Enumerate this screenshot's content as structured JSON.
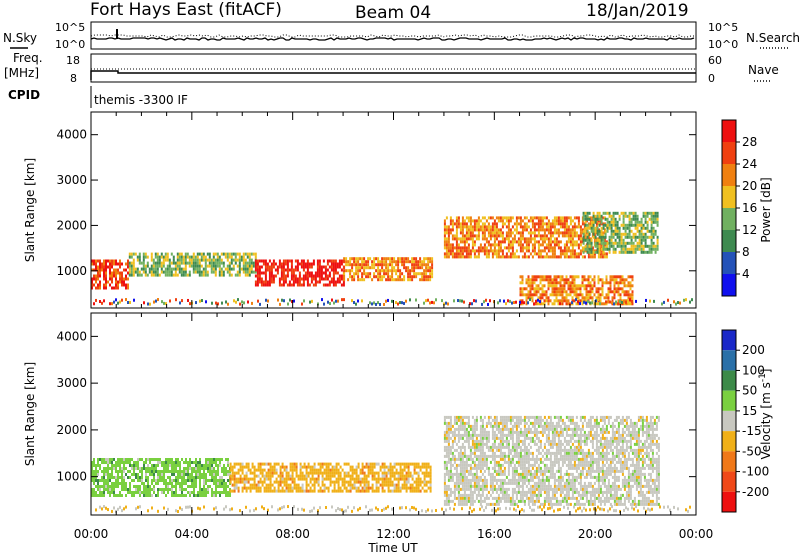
{
  "header": {
    "station": "Fort Hays East (fitACF)",
    "beam": "Beam 04",
    "date": "18/Jan/2019"
  },
  "panels": {
    "nsky_label": "N.Sky",
    "nsky_ticks": [
      "10^5",
      "10^0"
    ],
    "nsearch_label": "N.Search",
    "nsearch_ticks": [
      "10^5",
      "10^0"
    ],
    "freq_label": "Freq.",
    "freq_unit": "[MHz]",
    "freq_ticks": [
      "18",
      "8"
    ],
    "nave_label": "Nave",
    "nave_ticks": [
      "60",
      "0"
    ],
    "cpid_label": "CPID",
    "cpid_value": "themis -3300 IF"
  },
  "chart_data": [
    {
      "type": "heatmap",
      "name": "power",
      "xlabel": "",
      "ylabel": "Slant Range [km]",
      "x_ticks": [
        "00:00",
        "04:00",
        "08:00",
        "12:00",
        "16:00",
        "20:00",
        "00:00"
      ],
      "y_ticks": [
        1000,
        2000,
        3000,
        4000
      ],
      "xlim_hours": [
        0,
        24
      ],
      "ylim_km": [
        180,
        4500
      ],
      "colorbar": {
        "label": "Power [dB]",
        "ticks": [
          4,
          8,
          12,
          16,
          20,
          24,
          28
        ],
        "range": [
          0,
          30
        ],
        "colors": [
          "#1010ee",
          "#2452b8",
          "#3e8a50",
          "#70b060",
          "#f0c020",
          "#f08010",
          "#f04010",
          "#ee1010"
        ]
      },
      "echo_regions": [
        {
          "t_start": 0.0,
          "t_end": 1.5,
          "range_km": [
            650,
            1250
          ],
          "power_db": 26
        },
        {
          "t_start": 1.5,
          "t_end": 6.5,
          "range_km": [
            900,
            1400
          ],
          "power_db": 12
        },
        {
          "t_start": 6.5,
          "t_end": 10.0,
          "range_km": [
            700,
            1250
          ],
          "power_db": 28
        },
        {
          "t_start": 10.0,
          "t_end": 13.5,
          "range_km": [
            800,
            1300
          ],
          "power_db": 20
        },
        {
          "t_start": 14.0,
          "t_end": 20.5,
          "range_km": [
            1300,
            2200
          ],
          "power_db": 22
        },
        {
          "t_start": 17.0,
          "t_end": 21.5,
          "range_km": [
            300,
            900
          ],
          "power_db": 20
        },
        {
          "t_start": 19.5,
          "t_end": 22.5,
          "range_km": [
            1400,
            2300
          ],
          "power_db": 12
        }
      ]
    },
    {
      "type": "heatmap",
      "name": "velocity",
      "xlabel": "Time UT",
      "ylabel": "Slant Range [km]",
      "x_ticks": [
        "00:00",
        "04:00",
        "08:00",
        "12:00",
        "16:00",
        "20:00",
        "00:00"
      ],
      "y_ticks": [
        1000,
        2000,
        3000,
        4000
      ],
      "xlim_hours": [
        0,
        24
      ],
      "ylim_km": [
        180,
        4500
      ],
      "colorbar": {
        "label": "Velocity [m s^-1]",
        "ticks": [
          200,
          100,
          50,
          15,
          -15,
          -50,
          -100,
          -200
        ],
        "colors": [
          "#1a28c8",
          "#2a70a8",
          "#3c8a48",
          "#7ad040",
          "#c8c8c0",
          "#f0b018",
          "#f07818",
          "#f04818",
          "#ee1010"
        ]
      },
      "echo_regions": [
        {
          "t_start": 0.0,
          "t_end": 5.5,
          "range_km": [
            600,
            1400
          ],
          "velocity": 30
        },
        {
          "t_start": 5.5,
          "t_end": 13.5,
          "range_km": [
            700,
            1300
          ],
          "velocity": -30
        },
        {
          "t_start": 14.0,
          "t_end": 22.5,
          "range_km": [
            400,
            2300
          ],
          "velocity": 0
        }
      ]
    }
  ]
}
